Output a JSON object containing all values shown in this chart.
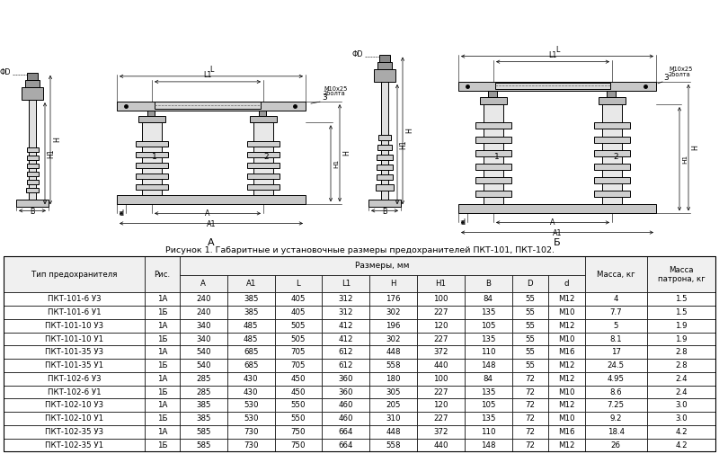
{
  "figure_caption": "Рисунок 1. Габаритные и установочные размеры предохранителей ПКТ-101, ПКТ-102.",
  "label_A": "А",
  "label_B": "Б",
  "table_header_main": "Размеры, мм",
  "table_col1": "Тип предохранителя",
  "table_col2": "Рис.",
  "table_cols_dim": [
    "A",
    "A1",
    "L",
    "L1",
    "H",
    "H1",
    "B",
    "D",
    "d"
  ],
  "table_col_mass": "Масса, кг",
  "table_col_cartridge": "Масса\nпатрона, кг",
  "table_rows": [
    [
      "ПКТ-101-6 У3",
      "1А",
      240,
      385,
      405,
      312,
      176,
      100,
      84,
      55,
      "M12",
      4,
      1.5
    ],
    [
      "ПКТ-101-6 У1",
      "1Б",
      240,
      385,
      405,
      312,
      302,
      227,
      135,
      55,
      "M10",
      7.7,
      1.5
    ],
    [
      "ПКТ-101-10 У3",
      "1А",
      340,
      485,
      505,
      412,
      196,
      120,
      105,
      55,
      "M12",
      5,
      1.9
    ],
    [
      "ПКТ-101-10 У1",
      "1Б",
      340,
      485,
      505,
      412,
      302,
      227,
      135,
      55,
      "M10",
      8.1,
      1.9
    ],
    [
      "ПКТ-101-35 У3",
      "1А",
      540,
      685,
      705,
      612,
      448,
      372,
      110,
      55,
      "M16",
      17,
      2.8
    ],
    [
      "ПКТ-101-35 У1",
      "1Б",
      540,
      685,
      705,
      612,
      558,
      440,
      148,
      55,
      "M12",
      24.5,
      2.8
    ],
    [
      "ПКТ-102-6 У3",
      "1А",
      285,
      430,
      450,
      360,
      180,
      100,
      84,
      72,
      "M12",
      4.95,
      2.4
    ],
    [
      "ПКТ-102-6 У1",
      "1Б",
      285,
      430,
      450,
      360,
      305,
      227,
      135,
      72,
      "M10",
      8.6,
      2.4
    ],
    [
      "ПКТ-102-10 У3",
      "1А",
      385,
      530,
      550,
      460,
      205,
      120,
      105,
      72,
      "M12",
      7.25,
      3.0
    ],
    [
      "ПКТ-102-10 У1",
      "1Б",
      385,
      530,
      550,
      460,
      310,
      227,
      135,
      72,
      "M10",
      9.2,
      3.0
    ],
    [
      "ПКТ-102-35 У3",
      "1А",
      585,
      730,
      750,
      664,
      448,
      372,
      110,
      72,
      "M16",
      18.4,
      4.2
    ],
    [
      "ПКТ-102-35 У1",
      "1Б",
      585,
      730,
      750,
      664,
      558,
      440,
      148,
      72,
      "M12",
      26,
      4.2
    ]
  ],
  "bg_color": "#ffffff",
  "font_size_table": 6.2,
  "font_size_caption": 6.8
}
